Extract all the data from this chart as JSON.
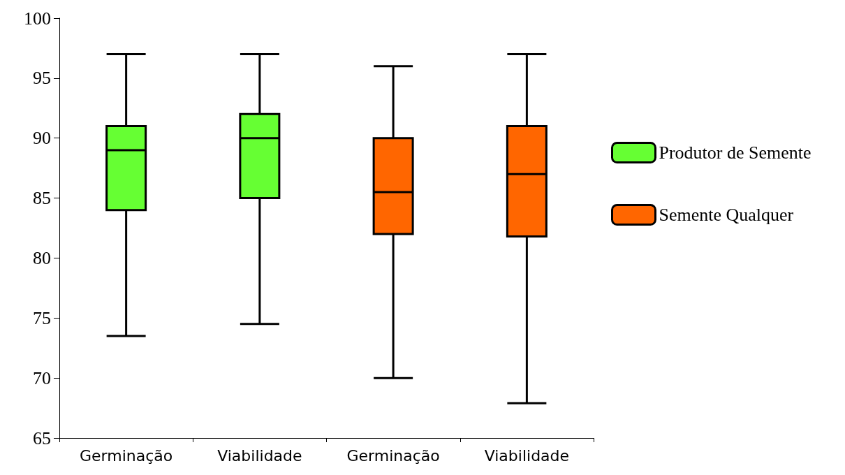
{
  "chart_data": {
    "type": "box",
    "categories": [
      "Germinação",
      "Viabilidade",
      "Germinação",
      "Viabilidade"
    ],
    "ylim": [
      65,
      100
    ],
    "yticks": [
      65,
      70,
      75,
      80,
      85,
      90,
      95,
      100
    ],
    "grid": false,
    "legend": "right",
    "series": [
      {
        "name": "Produtor de Semente",
        "color": "#66ff33",
        "boxes": [
          {
            "low": 73.5,
            "q1": 84,
            "median": 89,
            "q3": 91,
            "high": 97
          },
          {
            "low": 74.5,
            "q1": 85,
            "median": 90,
            "q3": 92,
            "high": 97
          },
          null,
          null
        ]
      },
      {
        "name": "Semente Qualquer",
        "color": "#ff6600",
        "boxes": [
          null,
          null,
          {
            "low": 70,
            "q1": 82,
            "median": 85.5,
            "q3": 90,
            "high": 96
          },
          {
            "low": 67.9,
            "q1": 81.8,
            "median": 87,
            "q3": 91,
            "high": 97
          }
        ]
      }
    ]
  }
}
